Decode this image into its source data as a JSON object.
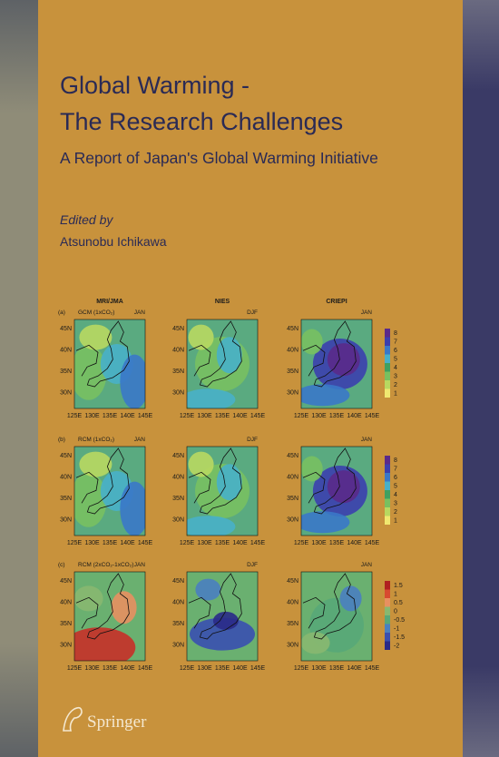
{
  "header": {
    "title_lines": [
      "Global Warming -",
      "The Research Challenges"
    ],
    "subtitle": "A Report of Japan's Global Warming Initiative",
    "edited_by": "Edited by",
    "editor": "Atsunobu Ichikawa"
  },
  "figure": {
    "columns": [
      "MRI/JMA",
      "NIES",
      "CRIEPI"
    ],
    "rows": [
      {
        "label": "(a)",
        "model": "GCM (1xCO₂)",
        "tags": [
          "JAN",
          "DJF",
          "JAN"
        ],
        "colorbar": [
          "8",
          "7",
          "6",
          "5",
          "4",
          "3",
          "2",
          "1"
        ]
      },
      {
        "label": "(b)",
        "model": "RCM (1xCO₂)",
        "tags": [
          "JAN",
          "DJF",
          "JAN"
        ],
        "colorbar": [
          "8",
          "7",
          "6",
          "5",
          "4",
          "3",
          "2",
          "1"
        ]
      },
      {
        "label": "(c)",
        "model": "RCM (2xCO₂-1xCO₂)",
        "tags": [
          "JAN",
          "DJF",
          "JAN"
        ],
        "colorbar": [
          "1.5",
          "1",
          "0.5",
          "0",
          "-0.5",
          "-1",
          "-1.5",
          "-2"
        ]
      }
    ],
    "lat_labels": [
      "45N",
      "40N",
      "35N",
      "30N"
    ],
    "lon_labels": [
      "125E",
      "130E",
      "135E",
      "140E",
      "145E"
    ]
  },
  "publisher": "Springer"
}
